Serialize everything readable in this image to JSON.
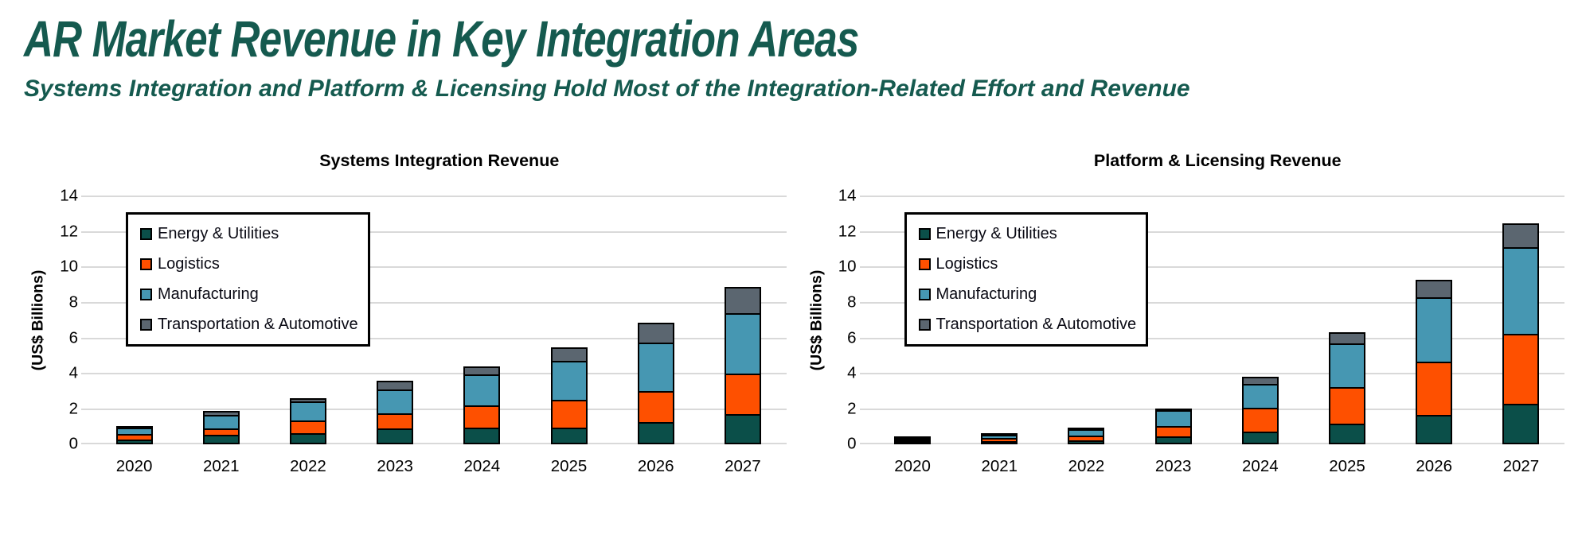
{
  "page": {
    "title": "AR Market Revenue in Key Integration Areas",
    "subtitle": "Systems Integration and Platform & Licensing Hold Most of the Integration-Related Effort and Revenue"
  },
  "colors": {
    "heading_text": "#155a4f",
    "chart_title_text": "#000000",
    "gridline": "#d9d9d9",
    "bar_border": "#000000",
    "legend_border": "#000000",
    "energy_utilities": "#0b4f49",
    "logistics": "#fe5000",
    "manufacturing": "#4697b2",
    "transportation_automotive": "#5b6670"
  },
  "chart_data": [
    {
      "type": "bar",
      "stacked": true,
      "title": "Systems Integration Revenue",
      "ylabel": "(US$ Billions)",
      "ylim": [
        0,
        14
      ],
      "yticks": [
        0,
        2,
        4,
        6,
        8,
        10,
        12,
        14
      ],
      "grid": true,
      "legend_position": "upper-left-inside",
      "categories": [
        "2020",
        "2021",
        "2022",
        "2023",
        "2024",
        "2025",
        "2026",
        "2027"
      ],
      "series": [
        {
          "name": "Energy & Utilities",
          "color": "#0b4f49",
          "values": [
            0.3,
            0.55,
            0.65,
            0.9,
            0.95,
            0.95,
            1.25,
            1.7
          ]
        },
        {
          "name": "Logistics",
          "color": "#fe5000",
          "values": [
            0.4,
            0.45,
            0.8,
            0.95,
            1.35,
            1.65,
            1.85,
            2.4
          ]
        },
        {
          "name": "Manufacturing",
          "color": "#4697b2",
          "values": [
            0.45,
            0.85,
            1.15,
            1.45,
            1.85,
            2.3,
            2.85,
            3.5
          ]
        },
        {
          "name": "Transportation & Automotive",
          "color": "#5b6670",
          "values": [
            0.15,
            0.3,
            0.3,
            0.55,
            0.55,
            0.85,
            1.2,
            1.55
          ]
        }
      ],
      "totals": [
        1.3,
        2.15,
        2.9,
        3.85,
        4.7,
        5.75,
        7.15,
        9.15
      ]
    },
    {
      "type": "bar",
      "stacked": true,
      "title": "Platform & Licensing Revenue",
      "ylabel": "(US$ Billions)",
      "ylim": [
        0,
        14
      ],
      "yticks": [
        0,
        2,
        4,
        6,
        8,
        10,
        12,
        14
      ],
      "grid": true,
      "legend_position": "upper-left-inside",
      "categories": [
        "2020",
        "2021",
        "2022",
        "2023",
        "2024",
        "2025",
        "2026",
        "2027"
      ],
      "series": [
        {
          "name": "Energy & Utilities",
          "color": "#0b4f49",
          "values": [
            0.05,
            0.1,
            0.25,
            0.45,
            0.75,
            1.2,
            1.65,
            2.3
          ]
        },
        {
          "name": "Logistics",
          "color": "#fe5000",
          "values": [
            0.2,
            0.3,
            0.35,
            0.7,
            1.4,
            2.15,
            3.1,
            4.05
          ]
        },
        {
          "name": "Manufacturing",
          "color": "#4697b2",
          "values": [
            0.15,
            0.25,
            0.45,
            0.95,
            1.45,
            2.55,
            3.75,
            4.95
          ]
        },
        {
          "name": "Transportation & Automotive",
          "color": "#5b6670",
          "values": [
            0.05,
            0.1,
            0.15,
            0.2,
            0.5,
            0.7,
            1.05,
            1.45
          ]
        }
      ],
      "totals": [
        0.45,
        0.75,
        1.2,
        2.3,
        4.1,
        6.6,
        9.55,
        12.75
      ]
    }
  ],
  "legend": {
    "items": [
      "Energy & Utilities",
      "Logistics",
      "Manufacturing",
      "Transportation & Automotive"
    ]
  }
}
